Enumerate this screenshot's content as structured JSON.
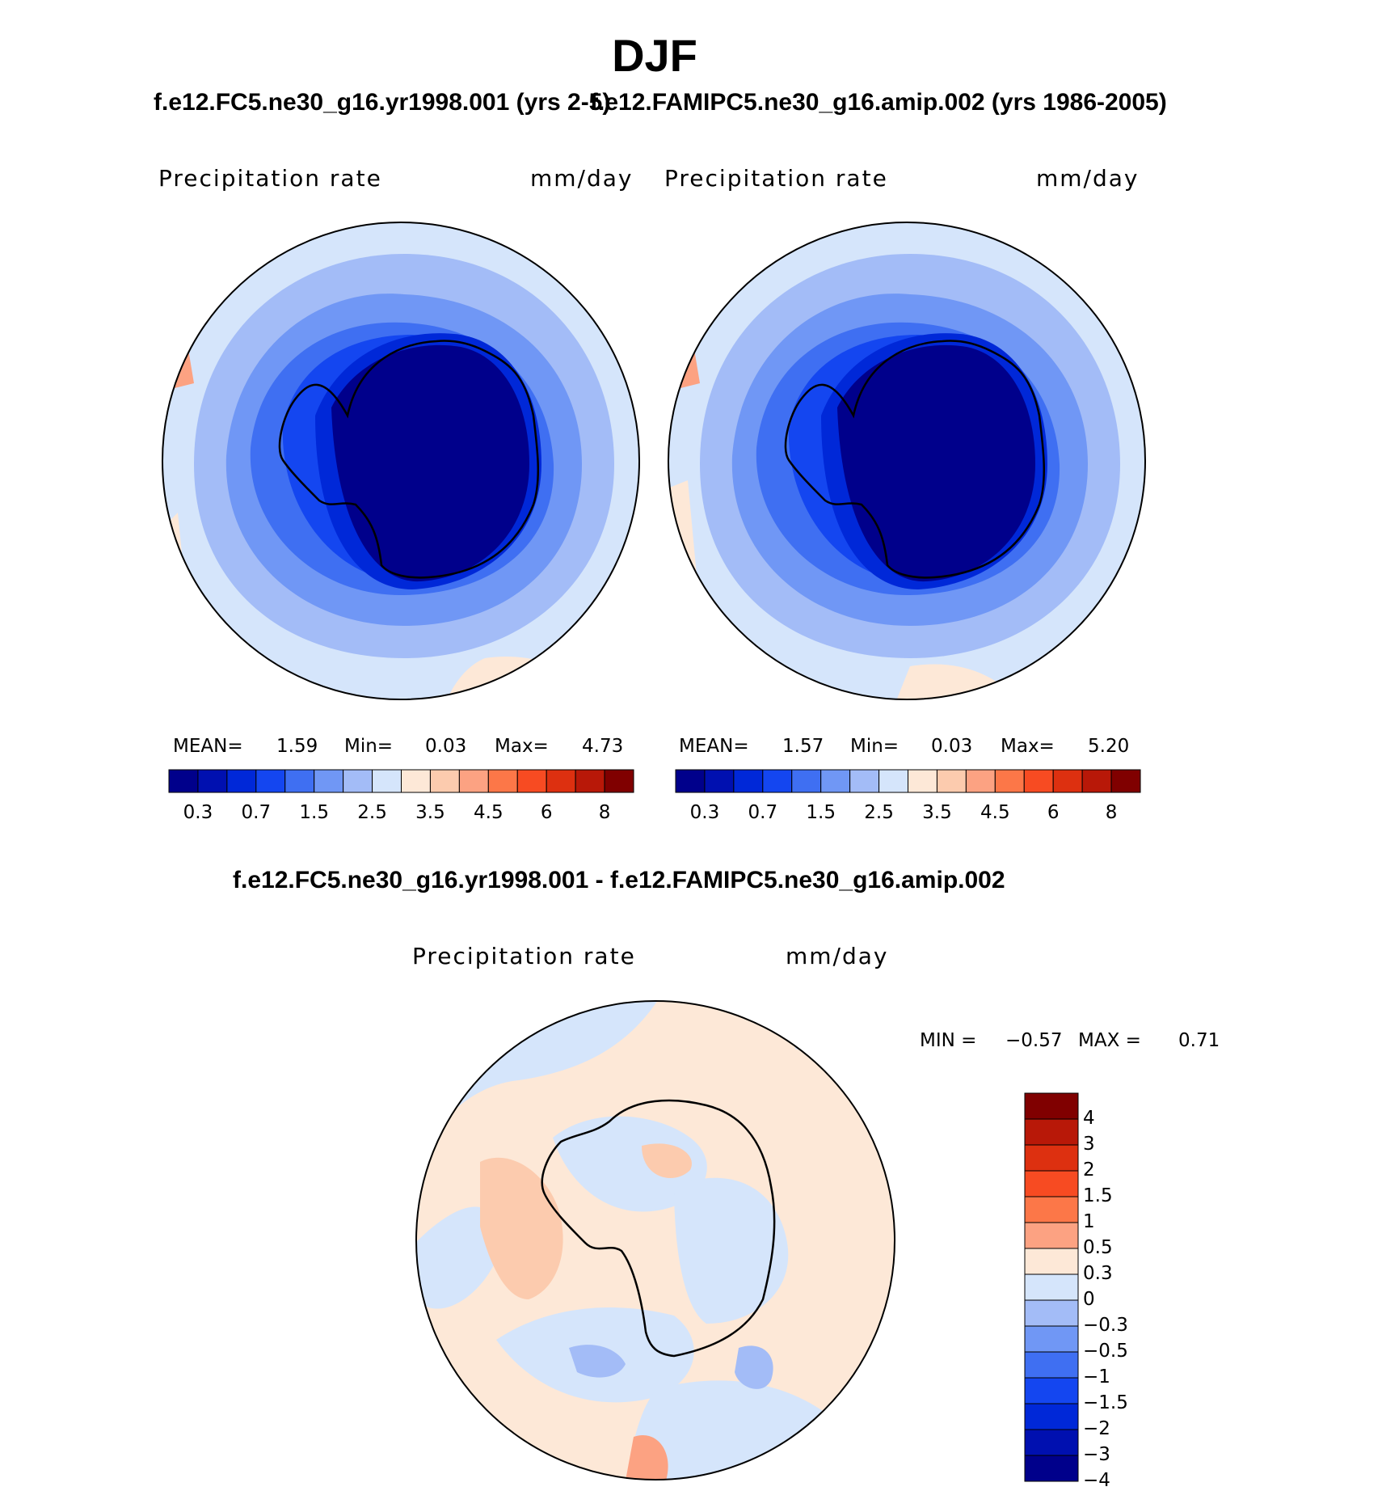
{
  "title": "DJF",
  "cases": {
    "left_title": "f.e12.FC5.ne30_g16.yr1998.001 (yrs 2-5)",
    "right_title": "f.e12.FAMIPC5.ne30_g16.amip.002 (yrs 1986-2005)",
    "diff_title": "f.e12.FC5.ne30_g16.yr1998.001 - f.e12.FAMIPC5.ne30_g16.amip.002"
  },
  "panels": {
    "left": {
      "variable": "Precipitation rate",
      "units": "mm/day",
      "mean_label": "MEAN=",
      "mean": "1.59",
      "min_label": "Min=",
      "min": "0.03",
      "max_label": "Max=",
      "max": "4.73"
    },
    "right": {
      "variable": "Precipitation rate",
      "units": "mm/day",
      "mean_label": "MEAN=",
      "mean": "1.57",
      "min_label": "Min=",
      "min": "0.03",
      "max_label": "Max=",
      "max": "5.20"
    },
    "diff": {
      "variable": "Precipitation rate",
      "units": "mm/day",
      "min_label": "MIN =",
      "min": "−0.57",
      "max_label": "MAX =",
      "max": "0.71"
    }
  },
  "colorbar": {
    "colors": [
      "#00008b",
      "#0010b0",
      "#0028d8",
      "#1446f0",
      "#3f6ff2",
      "#7097f5",
      "#a3bcf7",
      "#d5e5fb",
      "#fde8d7",
      "#fccbae",
      "#fca282",
      "#fc7748",
      "#f74b22",
      "#dd3010",
      "#b81808",
      "#800000"
    ],
    "labels": [
      "0.3",
      "0.7",
      "1.5",
      "2.5",
      "3.5",
      "4.5",
      "6",
      "8"
    ]
  },
  "diff_colorbar": {
    "colors": [
      "#800000",
      "#b81808",
      "#dd3010",
      "#f74b22",
      "#fc7748",
      "#fca282",
      "#fde8d7",
      "#d5e5fb",
      "#a3bcf7",
      "#7097f5",
      "#3f6ff2",
      "#1446f0",
      "#0028d8",
      "#0010b0",
      "#00008b"
    ],
    "labels": [
      "4",
      "3",
      "2",
      "1.5",
      "1",
      "0.5",
      "0.3",
      "0",
      "−0.3",
      "−0.5",
      "−1",
      "−1.5",
      "−2",
      "−3",
      "−4"
    ]
  }
}
